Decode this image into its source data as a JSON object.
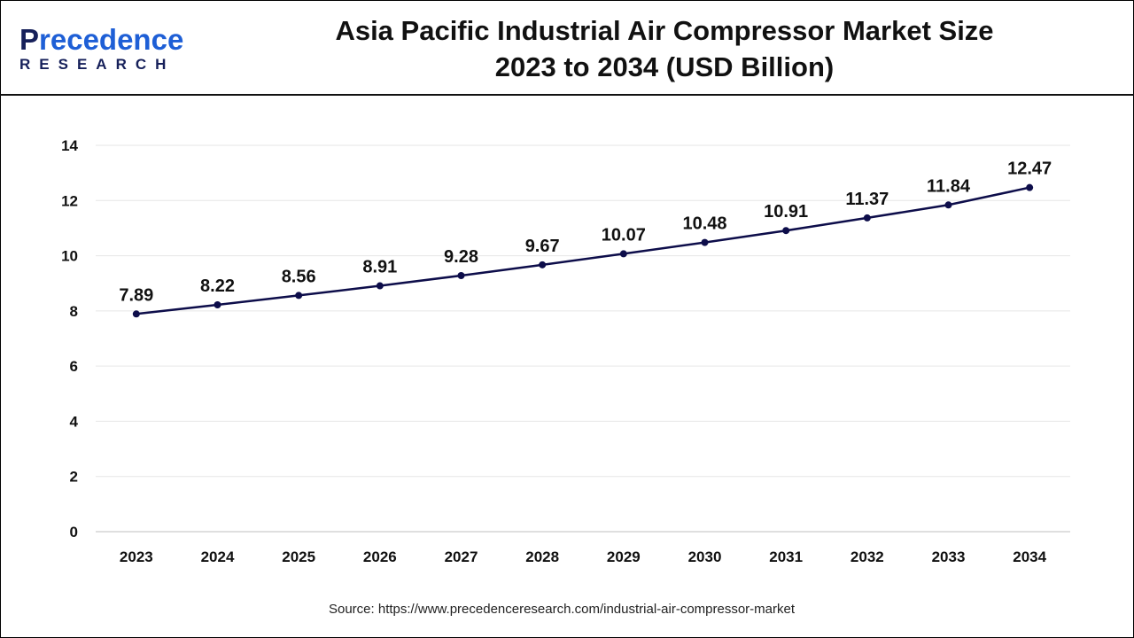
{
  "logo": {
    "line1": "Precedence",
    "line2": "RESEARCH"
  },
  "title_line1": "Asia Pacific Industrial Air Compressor Market Size",
  "title_line2": "2023 to 2034 (USD Billion)",
  "source": "Source: https://www.precedenceresearch.com/industrial-air-compressor-market",
  "chart_data": {
    "type": "line",
    "title": "Asia Pacific Industrial Air Compressor Market Size 2023 to 2034 (USD Billion)",
    "categories": [
      "2023",
      "2024",
      "2025",
      "2026",
      "2027",
      "2028",
      "2029",
      "2030",
      "2031",
      "2032",
      "2033",
      "2034"
    ],
    "values": [
      7.89,
      8.22,
      8.56,
      8.91,
      9.28,
      9.67,
      10.07,
      10.48,
      10.91,
      11.37,
      11.84,
      12.47
    ],
    "labels": [
      "7.89",
      "8.22",
      "8.56",
      "8.91",
      "9.28",
      "9.67",
      "10.07",
      "10.48",
      "10.91",
      "11.37",
      "11.84",
      "12.47"
    ],
    "ylim": [
      0,
      14
    ],
    "yticks": [
      "0",
      "2",
      "4",
      "6",
      "8",
      "10",
      "12",
      "14"
    ],
    "grid": true,
    "line_color": "#0d0d4a",
    "xlabel": "",
    "ylabel": ""
  }
}
